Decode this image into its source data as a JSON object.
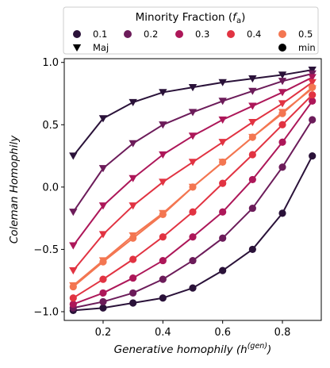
{
  "chart_data": {
    "type": "line",
    "xlabel": "Generative homophily (h",
    "xlabel_sup": "(gen)",
    "xlabel_end": ")",
    "ylabel": "Coleman Homophily",
    "xlim": [
      0.07,
      0.93
    ],
    "ylim": [
      -1.07,
      1.03
    ],
    "x_ticks": [
      0.2,
      0.4,
      0.6,
      0.8
    ],
    "x_tick_labels": [
      "0.2",
      "0.4",
      "0.6",
      "0.8"
    ],
    "y_ticks": [
      -1.0,
      -0.5,
      0.0,
      0.5,
      1.0
    ],
    "y_tick_labels": [
      "−1.0",
      "−0.5",
      "0.0",
      "0.5",
      "1.0"
    ],
    "grid": false,
    "legend": {
      "placement": "top, above plot",
      "title_main": "Minority Fraction (",
      "title_italic": "f",
      "title_sub": "a",
      "title_end": ")",
      "entries": [
        {
          "label": "0.1",
          "color": "#2a1239"
        },
        {
          "label": "0.2",
          "color": "#6c1c5a"
        },
        {
          "label": "0.3",
          "color": "#ad1759"
        },
        {
          "label": "0.4",
          "color": "#e13342"
        },
        {
          "label": "0.5",
          "color": "#f37651"
        }
      ],
      "marker_entries": [
        {
          "label": "Maj",
          "marker": "triangle-down"
        },
        {
          "label": "min",
          "marker": "circle"
        }
      ]
    },
    "x": [
      0.1,
      0.2,
      0.3,
      0.4,
      0.5,
      0.6,
      0.7,
      0.8,
      0.9
    ],
    "series": [
      {
        "fraction": "0.1",
        "group": "Maj",
        "color": "#2a1239",
        "values": [
          0.25,
          0.55,
          0.68,
          0.76,
          0.8,
          0.84,
          0.87,
          0.9,
          0.94
        ]
      },
      {
        "fraction": "0.1",
        "group": "min",
        "color": "#2a1239",
        "values": [
          -0.99,
          -0.97,
          -0.93,
          -0.89,
          -0.81,
          -0.67,
          -0.5,
          -0.21,
          0.25
        ]
      },
      {
        "fraction": "0.2",
        "group": "Maj",
        "color": "#6c1c5a",
        "values": [
          -0.2,
          0.15,
          0.35,
          0.5,
          0.6,
          0.69,
          0.77,
          0.85,
          0.91
        ]
      },
      {
        "fraction": "0.2",
        "group": "min",
        "color": "#6c1c5a",
        "values": [
          -0.97,
          -0.92,
          -0.85,
          -0.74,
          -0.59,
          -0.41,
          -0.17,
          0.16,
          0.54
        ]
      },
      {
        "fraction": "0.3",
        "group": "Maj",
        "color": "#ad1759",
        "values": [
          -0.47,
          -0.15,
          0.07,
          0.26,
          0.41,
          0.54,
          0.65,
          0.76,
          0.88
        ]
      },
      {
        "fraction": "0.3",
        "group": "min",
        "color": "#ad1759",
        "values": [
          -0.94,
          -0.85,
          -0.73,
          -0.59,
          -0.4,
          -0.2,
          0.06,
          0.36,
          0.69
        ]
      },
      {
        "fraction": "0.4",
        "group": "Maj",
        "color": "#e13342",
        "values": [
          -0.67,
          -0.38,
          -0.15,
          0.04,
          0.2,
          0.36,
          0.52,
          0.67,
          0.84
        ]
      },
      {
        "fraction": "0.4",
        "group": "min",
        "color": "#e13342",
        "values": [
          -0.89,
          -0.74,
          -0.58,
          -0.4,
          -0.2,
          0.03,
          0.26,
          0.5,
          0.74
        ]
      },
      {
        "fraction": "0.5",
        "group": "Maj",
        "color": "#f37651",
        "values": [
          -0.79,
          -0.59,
          -0.39,
          -0.21,
          0.0,
          0.2,
          0.4,
          0.6,
          0.79
        ]
      },
      {
        "fraction": "0.5",
        "group": "min",
        "color": "#f37651",
        "values": [
          -0.8,
          -0.6,
          -0.41,
          -0.22,
          0.0,
          0.2,
          0.4,
          0.59,
          0.8
        ]
      }
    ]
  }
}
